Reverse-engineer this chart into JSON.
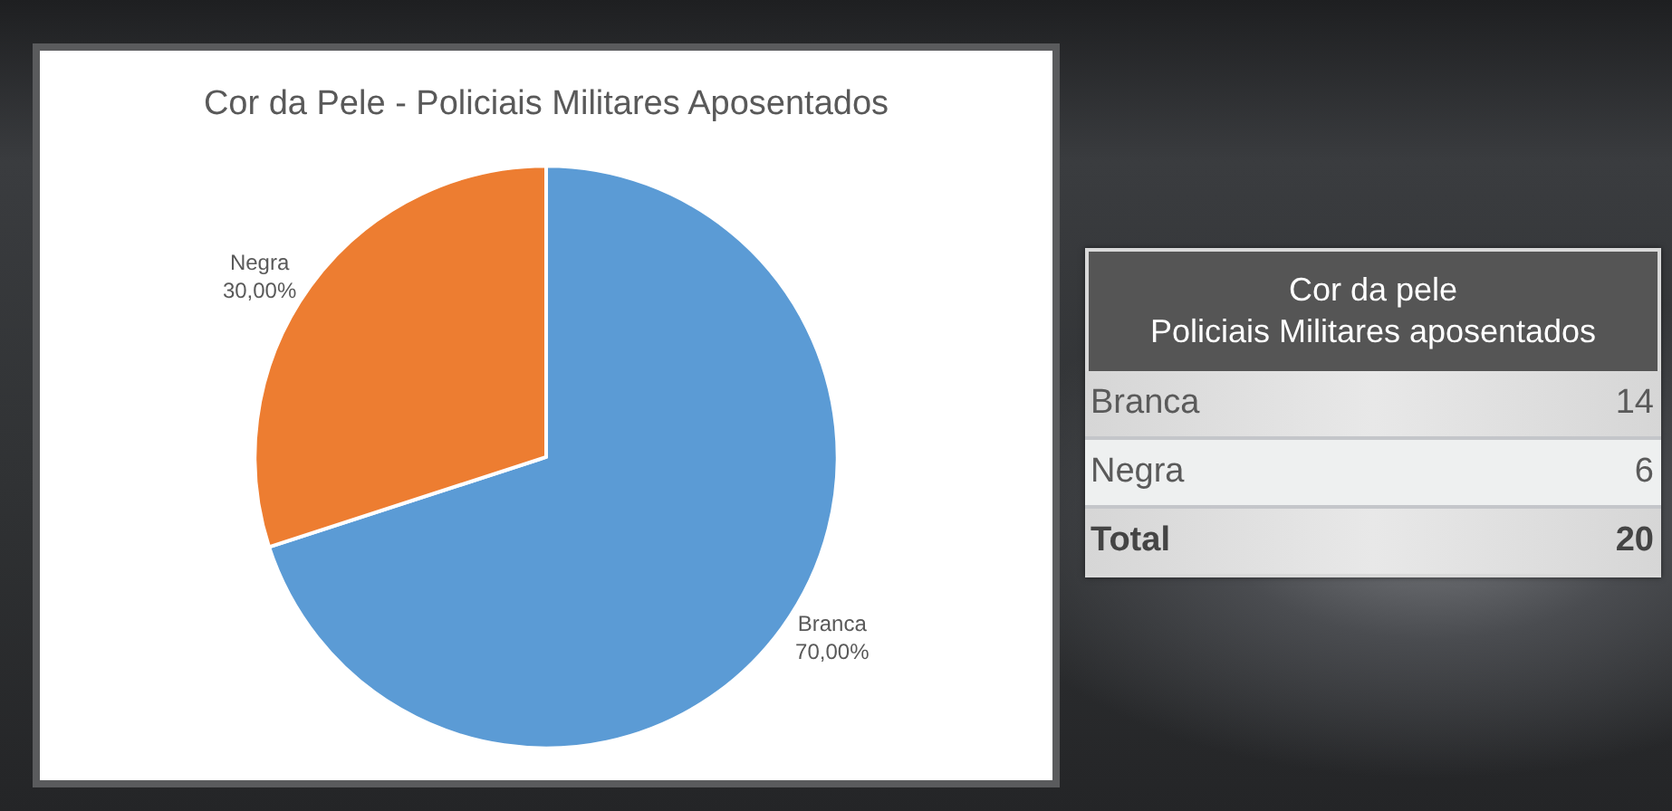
{
  "chart_data": [
    {
      "type": "pie",
      "title": "Cor da Pele - Policiais Militares Aposentados",
      "categories": [
        "Branca",
        "Negra"
      ],
      "values": [
        70,
        30
      ],
      "colors": [
        "#5b9bd5",
        "#ed7d31"
      ],
      "value_labels": [
        "70,00%",
        "30,00%"
      ]
    },
    {
      "type": "other",
      "title": "Cor da pele\nPoliciais Militares aposentados",
      "categories": [
        "Branca",
        "Negra",
        "Total"
      ],
      "values": [
        14,
        6,
        20
      ],
      "data_labels": true
    }
  ]
}
